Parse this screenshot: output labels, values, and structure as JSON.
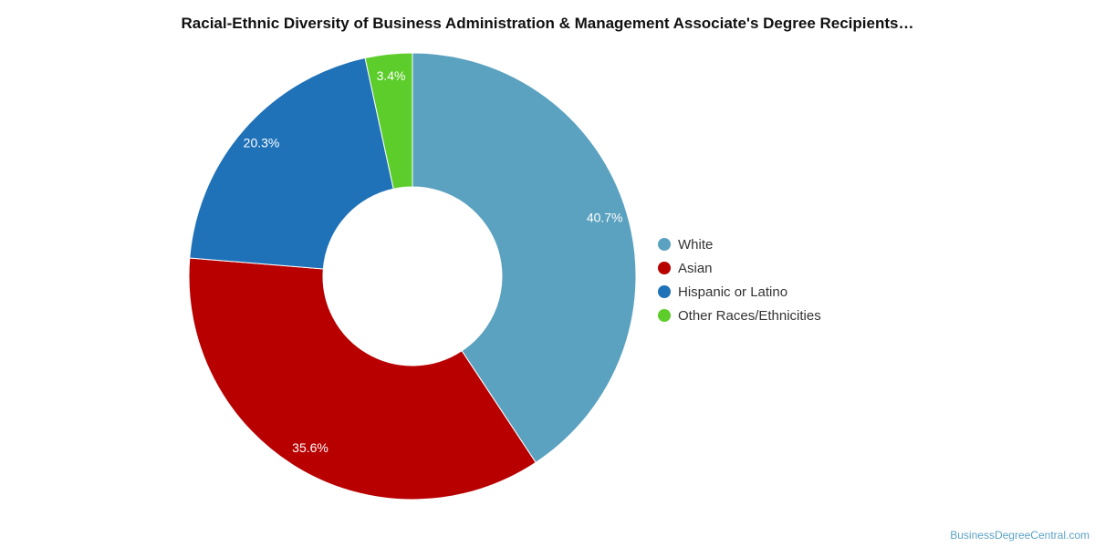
{
  "chart_data": {
    "type": "pie",
    "donut": true,
    "title": "Racial-Ethnic Diversity of Business Administration & Management Associate's Degree Recipients…",
    "slices": [
      {
        "name": "White",
        "value": 40.7,
        "label": "40.7%",
        "color": "#5ba2c0"
      },
      {
        "name": "Asian",
        "value": 35.6,
        "label": "35.6%",
        "color": "#b80000"
      },
      {
        "name": "Hispanic or Latino",
        "value": 20.3,
        "label": "20.3%",
        "color": "#1f72b8"
      },
      {
        "name": "Other Races/Ethnicities",
        "value": 3.4,
        "label": "3.4%",
        "color": "#5ccd2a"
      }
    ],
    "legend_position": "right"
  },
  "source_text": "BusinessDegreeCentral.com"
}
